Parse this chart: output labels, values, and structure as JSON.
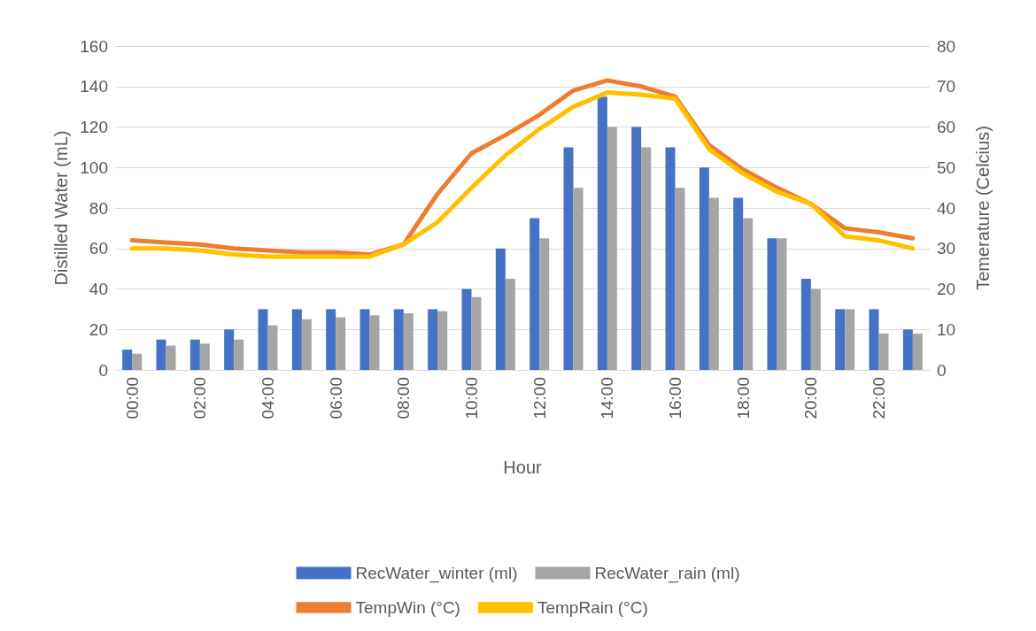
{
  "chart_data": {
    "type": "bar",
    "xlabel": "Hour",
    "ylabel": "Distilled Water (mL)",
    "y2label": "Temerature (Celcius)",
    "categories": [
      "00:00",
      null,
      "02:00",
      null,
      "04:00",
      null,
      "06:00",
      null,
      "08:00",
      null,
      "10:00",
      null,
      "12:00",
      null,
      "14:00",
      null,
      "16:00",
      null,
      "18:00",
      null,
      "20:00",
      null,
      "22:00",
      null
    ],
    "series": [
      {
        "name": "RecWater_winter (ml)",
        "color": "#4472c4",
        "values": [
          10,
          15,
          15,
          20,
          30,
          30,
          30,
          30,
          30,
          30,
          40,
          60,
          75,
          110,
          135,
          120,
          110,
          100,
          85,
          65,
          45,
          30,
          30,
          20
        ]
      },
      {
        "name": "RecWater_rain (ml)",
        "color": "#a5a5a5",
        "values": [
          8,
          12,
          13,
          15,
          22,
          25,
          26,
          27,
          28,
          29,
          36,
          45,
          65,
          90,
          120,
          110,
          90,
          85,
          75,
          65,
          40,
          30,
          18,
          18
        ]
      },
      {
        "name": "TempWin (°C)",
        "type": "line",
        "axis": "y2",
        "color": "#ed7d31",
        "values": [
          32,
          31.5,
          31,
          30,
          29.5,
          29,
          29,
          28.5,
          31,
          43.5,
          53.5,
          58,
          63,
          69,
          71.5,
          70,
          67.5,
          55.5,
          49.5,
          45,
          41,
          35,
          34,
          32.5
        ]
      },
      {
        "name": "TempRain (°C)",
        "type": "line",
        "axis": "y2",
        "color": "#ffc000",
        "values": [
          30,
          30,
          29.5,
          28.5,
          28,
          28,
          28,
          28,
          31,
          36.5,
          45,
          53,
          59.5,
          65,
          68.5,
          68,
          67,
          54.5,
          48.5,
          44,
          41,
          33,
          32,
          30
        ]
      }
    ],
    "ylim": [
      0,
      160
    ],
    "yticks": [
      0,
      20,
      40,
      60,
      80,
      100,
      120,
      140,
      160
    ],
    "y2lim": [
      0,
      80
    ],
    "y2ticks": [
      0,
      10,
      20,
      30,
      40,
      50,
      60,
      70,
      80
    ],
    "grid": "y",
    "legend": "bottom",
    "marker": "none",
    "line_style": "solid"
  }
}
